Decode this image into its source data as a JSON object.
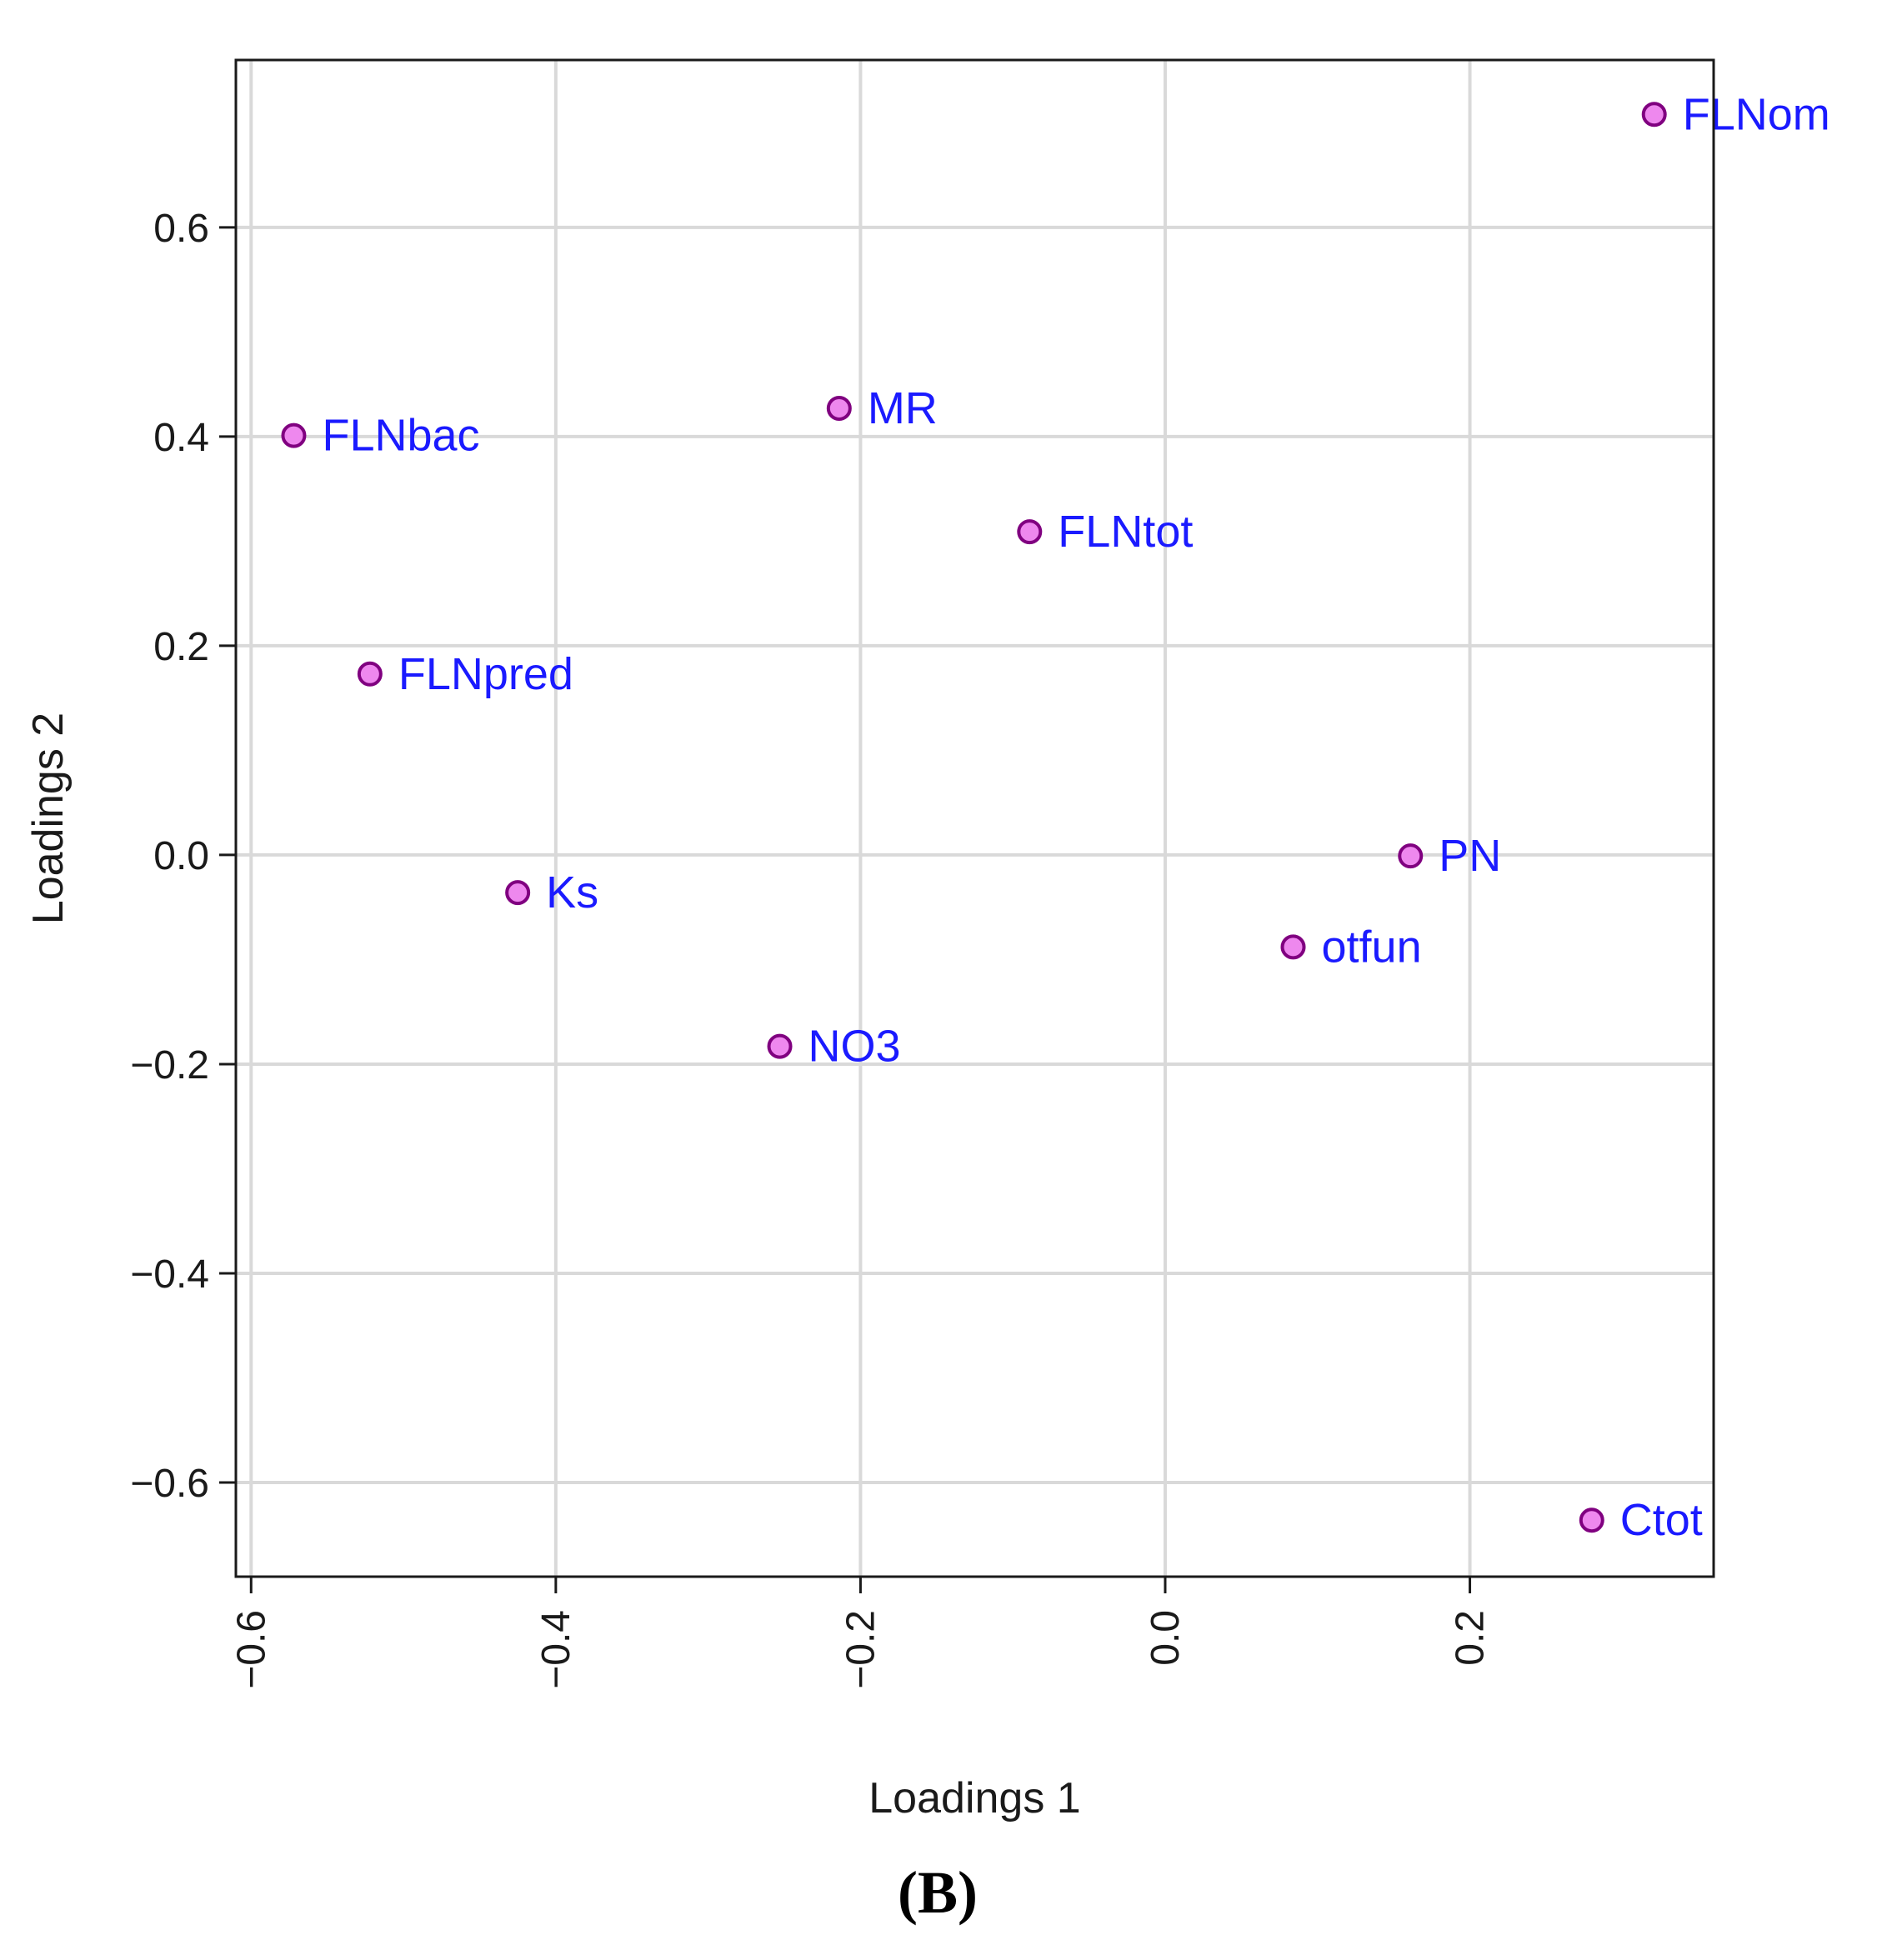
{
  "chart_data": {
    "type": "scatter",
    "xlabel": "Loadings 1",
    "ylabel": "Loadings 2",
    "xlim": [
      -0.61,
      0.36
    ],
    "ylim": [
      -0.69,
      0.76
    ],
    "xticks": [
      -0.6,
      -0.4,
      -0.2,
      0.0,
      0.2
    ],
    "xtick_labels": [
      "-0.6",
      "-0.4",
      "-0.2",
      "0.0",
      "0.2"
    ],
    "yticks": [
      -0.6,
      -0.4,
      -0.2,
      0.0,
      0.2,
      0.4,
      0.6
    ],
    "ytick_labels": [
      "-0.6",
      "-0.4",
      "-0.2",
      "0.0",
      "0.2",
      "0.4",
      "0.6"
    ],
    "grid": true,
    "point_fill": "#ee88ee",
    "point_stroke": "#800080",
    "label_color": "#1a1aff",
    "points": [
      {
        "label": "FLNom",
        "x": 0.321,
        "y": 0.708
      },
      {
        "label": "FLNbac",
        "x": -0.572,
        "y": 0.401
      },
      {
        "label": "MR",
        "x": -0.214,
        "y": 0.427
      },
      {
        "label": "FLNtot",
        "x": -0.089,
        "y": 0.309
      },
      {
        "label": "FLNpred",
        "x": -0.522,
        "y": 0.173
      },
      {
        "label": "PN",
        "x": 0.161,
        "y": -0.001
      },
      {
        "label": "Ks",
        "x": -0.425,
        "y": -0.036
      },
      {
        "label": "otfun",
        "x": 0.084,
        "y": -0.088
      },
      {
        "label": "NO3",
        "x": -0.253,
        "y": -0.183
      },
      {
        "label": "Ctot",
        "x": 0.28,
        "y": -0.636
      }
    ]
  },
  "panel_label": "(B)"
}
